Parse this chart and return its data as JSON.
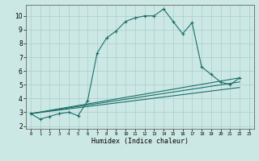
{
  "xlabel": "Humidex (Indice chaleur)",
  "bg_color": "#cce8e4",
  "grid_color": "#aacccc",
  "line_color": "#1a6e6a",
  "xlim": [
    -0.5,
    23.5
  ],
  "ylim": [
    1.8,
    10.8
  ],
  "xticks": [
    0,
    1,
    2,
    3,
    4,
    5,
    6,
    7,
    8,
    9,
    10,
    11,
    12,
    13,
    14,
    15,
    16,
    17,
    18,
    19,
    20,
    21,
    22,
    23
  ],
  "yticks": [
    2,
    3,
    4,
    5,
    6,
    7,
    8,
    9,
    10
  ],
  "main_x": [
    0,
    1,
    2,
    3,
    4,
    5,
    6,
    7,
    8,
    9,
    10,
    11,
    12,
    13,
    14,
    15,
    16,
    17,
    18,
    19,
    20,
    21,
    22
  ],
  "main_y": [
    2.9,
    2.5,
    2.7,
    2.9,
    3.0,
    2.75,
    3.85,
    7.3,
    8.4,
    8.9,
    9.6,
    9.85,
    10.0,
    10.0,
    10.5,
    9.6,
    8.7,
    9.5,
    6.3,
    5.75,
    5.2,
    5.0,
    5.5
  ],
  "flat_lines": [
    {
      "x": [
        0,
        22
      ],
      "y": [
        2.9,
        5.5
      ]
    },
    {
      "x": [
        0,
        22
      ],
      "y": [
        2.9,
        5.2
      ]
    },
    {
      "x": [
        0,
        22
      ],
      "y": [
        2.9,
        4.8
      ]
    }
  ]
}
